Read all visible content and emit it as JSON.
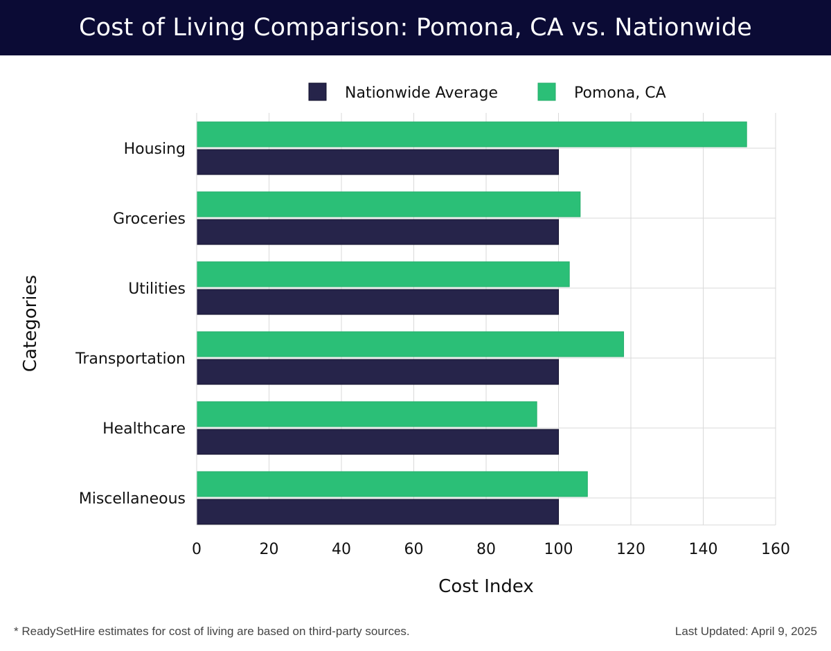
{
  "header": {
    "title": "Cost of Living Comparison: Pomona, CA vs. Nationwide"
  },
  "footer": {
    "note": "* ReadySetHire estimates for cost of living are based on third-party sources.",
    "last_updated": "Last Updated: April 9, 2025"
  },
  "colors": {
    "header_bg": "#0b0b35",
    "nationwide": "#26244a",
    "pomona": "#2bbf77",
    "grid": "#d9d9d9"
  },
  "chart_data": {
    "type": "bar",
    "orientation": "horizontal",
    "categories": [
      "Housing",
      "Groceries",
      "Utilities",
      "Transportation",
      "Healthcare",
      "Miscellaneous"
    ],
    "series": [
      {
        "name": "Nationwide Average",
        "values": [
          100,
          100,
          100,
          100,
          100,
          100
        ]
      },
      {
        "name": "Pomona, CA",
        "values": [
          152,
          106,
          103,
          118,
          94,
          108
        ]
      }
    ],
    "xlabel": "Cost Index",
    "ylabel": "Categories",
    "xlim": [
      0,
      160
    ],
    "xticks": [
      0,
      20,
      40,
      60,
      80,
      100,
      120,
      140,
      160
    ],
    "grid": true,
    "legend": "top-center"
  }
}
